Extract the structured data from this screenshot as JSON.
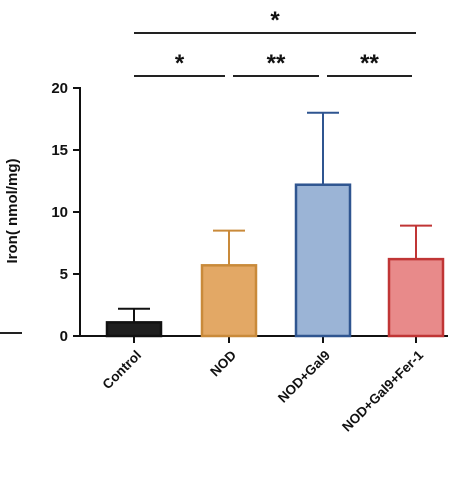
{
  "chart_data": {
    "type": "bar",
    "ylabel": "Iron( nmol/mg)",
    "ylim": [
      0,
      20
    ],
    "yticks": [
      0,
      5,
      10,
      15,
      20
    ],
    "categories": [
      "Control",
      "NOD",
      "NOD+Gal9",
      "NOD+Gal9+Fer-1"
    ],
    "values": [
      1.1,
      5.7,
      12.2,
      6.2
    ],
    "errors": [
      1.1,
      2.8,
      5.8,
      2.7
    ],
    "fill_colors": [
      "#1f1f1f",
      "#e3a865",
      "#9bb4d6",
      "#e88a8a"
    ],
    "edge_colors": [
      "#111111",
      "#c98a3a",
      "#2f5590",
      "#c03535"
    ],
    "significance": [
      {
        "from": 0,
        "to": 3,
        "label": "*"
      },
      {
        "from": 0,
        "to": 1,
        "label": "*"
      },
      {
        "from": 1,
        "to": 2,
        "label": "**"
      },
      {
        "from": 2,
        "to": 3,
        "label": "**"
      }
    ]
  }
}
